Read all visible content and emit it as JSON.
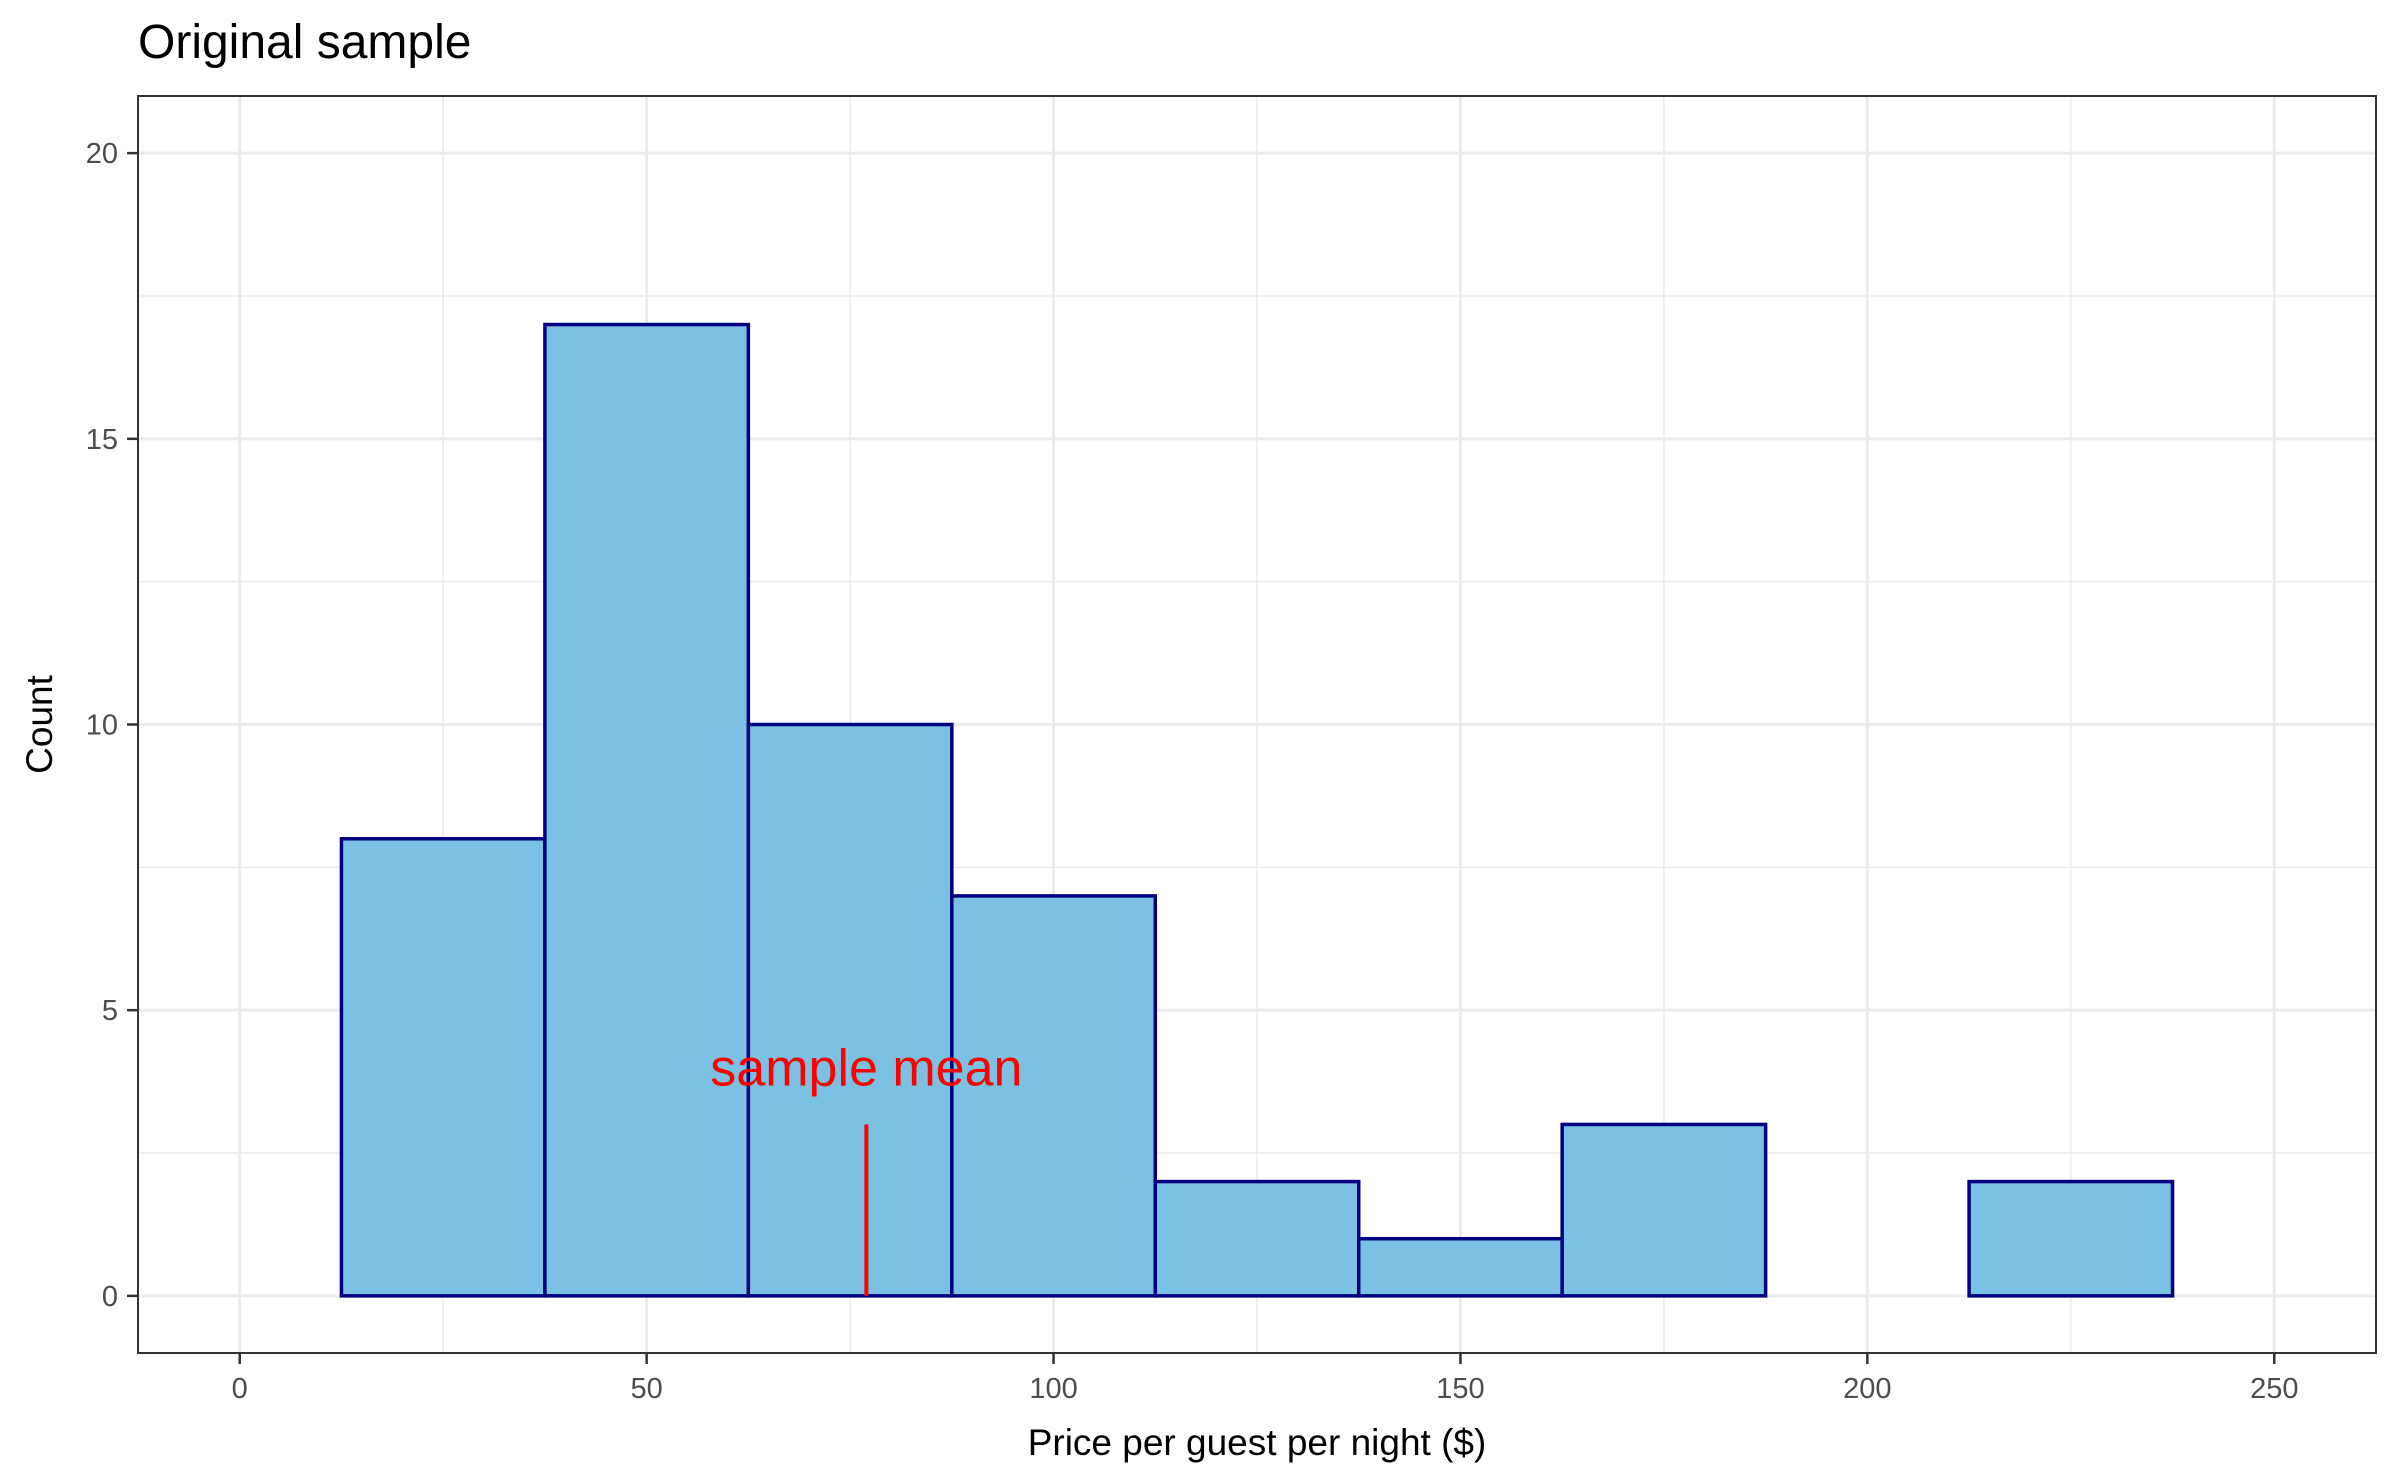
{
  "chart_data": {
    "type": "bar",
    "title": "Original sample",
    "xlabel": "Price per guest per night ($)",
    "ylabel": "Count",
    "xlim": [
      -12.5,
      262.5
    ],
    "ylim": [
      -1,
      21
    ],
    "x_ticks": [
      0,
      50,
      100,
      150,
      200,
      250
    ],
    "x_tick_labels": [
      "0",
      "50",
      "100",
      "150",
      "200",
      "250"
    ],
    "y_ticks": [
      0,
      5,
      10,
      15,
      20
    ],
    "y_tick_labels": [
      "0",
      "5",
      "10",
      "15",
      "20"
    ],
    "grid": true,
    "bin_width": 25,
    "bins": [
      {
        "x_start": 12.5,
        "x_end": 37.5,
        "count": 8
      },
      {
        "x_start": 37.5,
        "x_end": 62.5,
        "count": 17
      },
      {
        "x_start": 62.5,
        "x_end": 87.5,
        "count": 10
      },
      {
        "x_start": 87.5,
        "x_end": 112.5,
        "count": 7
      },
      {
        "x_start": 112.5,
        "x_end": 137.5,
        "count": 2
      },
      {
        "x_start": 137.5,
        "x_end": 162.5,
        "count": 1
      },
      {
        "x_start": 162.5,
        "x_end": 187.5,
        "count": 3
      },
      {
        "x_start": 187.5,
        "x_end": 212.5,
        "count": 0
      },
      {
        "x_start": 212.5,
        "x_end": 237.5,
        "count": 2
      }
    ],
    "annotations": [
      {
        "label": "sample mean",
        "x": 77,
        "segment_y": [
          0,
          3
        ],
        "text_y": 4,
        "color": "#ff0000"
      }
    ]
  },
  "colors": {
    "bar_fill": "#7ac1e3",
    "bar_outline": "#000080",
    "annotation": "#ff0000"
  }
}
